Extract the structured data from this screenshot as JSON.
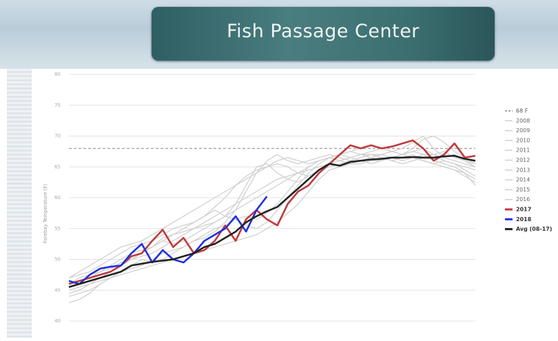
{
  "header": {
    "title": "Fish Passage Center"
  },
  "chart_data": {
    "type": "line",
    "y_label": "Forebay Temperature (F)",
    "ylim": [
      40,
      80
    ],
    "yticks": [
      40,
      45,
      50,
      55,
      60,
      65,
      70,
      75,
      80
    ],
    "grid": true,
    "reference_line": {
      "name": "68 F",
      "value": 68,
      "color": "#888888"
    },
    "categories": [
      null,
      null,
      null,
      null,
      null,
      null,
      null,
      null,
      null,
      null,
      null,
      null,
      null,
      null,
      null,
      null,
      null,
      null,
      null,
      null,
      null,
      null,
      null,
      null,
      null,
      null,
      null,
      null,
      null,
      null,
      null,
      null,
      null,
      null,
      null,
      null,
      null,
      null,
      null,
      null
    ],
    "series": [
      {
        "name": "2008",
        "color": "#d0d0d0",
        "values": [
          44,
          44.5,
          45,
          46,
          47,
          48,
          48.5,
          49,
          50,
          51,
          51.5,
          52,
          53,
          53.5,
          54.5,
          56,
          58,
          61,
          64,
          66,
          67,
          66,
          65.5,
          66,
          66.5,
          67,
          66.5,
          66,
          66.5,
          67,
          66.5,
          66,
          66.5,
          67,
          66,
          65.5,
          66,
          65.5,
          64.5,
          63.5
        ]
      },
      {
        "name": "2009",
        "color": "#d0d0d0",
        "values": [
          43,
          43.5,
          44.5,
          46,
          47,
          48,
          49,
          50,
          49.5,
          50,
          51,
          52,
          53,
          54,
          55,
          55.5,
          56.5,
          57,
          56.5,
          57.5,
          59,
          61,
          63,
          65,
          66,
          66.5,
          66,
          65.5,
          66,
          66.5,
          67,
          67.5,
          68,
          69,
          70,
          68,
          66.5,
          67,
          66,
          65
        ]
      },
      {
        "name": "2010",
        "color": "#d0d0d0",
        "values": [
          46,
          47,
          47.5,
          48,
          48.5,
          49.5,
          50,
          51,
          52,
          53,
          52.5,
          53,
          54,
          55,
          56,
          57,
          58,
          59,
          60,
          61,
          62,
          63,
          64,
          65,
          66,
          66.5,
          67,
          66.5,
          66,
          65.5,
          66,
          66.5,
          67,
          67.5,
          67,
          66,
          65.5,
          65,
          64,
          62
        ]
      },
      {
        "name": "2011",
        "color": "#d0d0d0",
        "values": [
          45,
          45.5,
          46,
          46.5,
          47,
          47.5,
          48,
          48.5,
          49,
          49.5,
          50,
          50.5,
          51,
          51.5,
          52,
          52.5,
          53,
          53.5,
          54,
          55,
          56,
          57.5,
          59,
          61,
          63,
          64.5,
          65,
          65.5,
          65.5,
          66,
          66,
          66.5,
          66,
          66.5,
          67,
          67,
          66.5,
          66,
          65.5,
          65
        ]
      },
      {
        "name": "2012",
        "color": "#d0d0d0",
        "values": [
          47,
          47.5,
          48,
          49,
          50,
          51,
          52,
          52.5,
          53,
          54,
          55,
          55.5,
          56,
          57,
          58.5,
          60,
          62,
          63.5,
          64.5,
          65,
          65.5,
          65,
          64,
          63.5,
          64.5,
          65.5,
          66,
          66.5,
          67,
          67,
          66.5,
          66,
          65.5,
          66,
          66.5,
          67,
          67.5,
          66.5,
          66,
          65.5
        ]
      },
      {
        "name": "2013",
        "color": "#d0d0d0",
        "values": [
          44.5,
          45,
          46,
          47,
          48,
          49,
          50,
          51,
          52,
          53.5,
          54,
          55,
          56,
          57,
          58,
          57,
          56.5,
          55.5,
          55,
          56,
          58,
          60,
          62,
          64,
          65.5,
          66.5,
          67,
          67.5,
          67,
          66.5,
          66,
          66.5,
          67,
          68,
          69.5,
          70,
          69,
          67.5,
          66.5,
          65.5
        ]
      },
      {
        "name": "2014",
        "color": "#d0d0d0",
        "values": [
          45.5,
          46,
          46.5,
          47,
          48,
          49,
          50,
          50.5,
          51,
          52,
          53,
          54,
          55,
          55.5,
          56,
          57,
          59,
          62,
          65,
          65.5,
          64,
          63,
          62.5,
          63.5,
          64.5,
          65,
          65.5,
          66,
          66.5,
          67,
          67,
          66.5,
          67,
          67.5,
          68,
          67,
          66,
          65.5,
          65,
          64.5
        ]
      },
      {
        "name": "2015",
        "color": "#d0d0d0",
        "values": [
          47,
          48,
          49,
          50,
          51,
          52,
          52.5,
          53,
          54,
          55,
          56,
          57,
          58,
          59,
          60,
          61,
          62,
          63,
          64,
          65,
          66,
          66.5,
          66,
          65.5,
          66,
          66.5,
          67,
          67.5,
          68,
          68.5,
          68,
          67.5,
          67,
          66.5,
          66,
          65.5,
          65,
          64.5,
          64,
          63
        ]
      },
      {
        "name": "2016",
        "color": "#d0d0d0",
        "values": [
          46,
          46.5,
          47,
          48,
          49,
          50,
          51,
          51.5,
          52,
          53,
          54,
          54.5,
          55,
          56,
          57,
          58,
          59,
          60,
          61,
          62,
          63,
          63.5,
          64,
          64.5,
          65,
          65.5,
          66,
          66.5,
          67,
          67.5,
          68,
          67.5,
          67,
          66.5,
          66,
          65.5,
          65,
          64.5,
          63.5,
          62.5
        ]
      },
      {
        "name": "2017",
        "color": "#c0393b",
        "values": [
          46,
          46.5,
          47,
          47.5,
          48,
          49,
          50.5,
          51,
          53,
          54.8,
          52,
          53.5,
          51,
          51.5,
          53,
          55.5,
          53,
          56.5,
          58,
          56.5,
          55.5,
          59,
          61,
          62,
          64,
          65.5,
          67,
          68.5,
          68,
          68.5,
          68,
          68.3,
          68.8,
          69.3,
          68,
          66,
          67,
          68.8,
          66.5,
          66.8
        ]
      },
      {
        "name": "2018",
        "color": "#1f2fe0",
        "values": [
          46.5,
          46,
          47.5,
          48.5,
          48.8,
          49,
          51,
          52.5,
          49.5,
          51.5,
          50,
          49.5,
          51,
          53,
          54,
          55,
          57,
          54.5,
          58,
          60.2,
          null,
          null,
          null,
          null,
          null,
          null,
          null,
          null,
          null,
          null,
          null,
          null,
          null,
          null,
          null,
          null,
          null,
          null,
          null,
          null
        ]
      },
      {
        "name": "Avg (08-17)",
        "color": "#222222",
        "values": [
          45.5,
          46,
          46.5,
          47,
          47.5,
          48,
          49,
          49.3,
          49.6,
          49.8,
          50,
          50.5,
          51,
          52,
          52.5,
          53.5,
          54.5,
          56,
          57,
          57.8,
          58.5,
          60,
          61.5,
          63,
          64.5,
          65.5,
          65.2,
          65.8,
          66,
          66.2,
          66.3,
          66.5,
          66.5,
          66.6,
          66.5,
          66.5,
          66.7,
          66.8,
          66.3,
          66
        ]
      }
    ]
  }
}
